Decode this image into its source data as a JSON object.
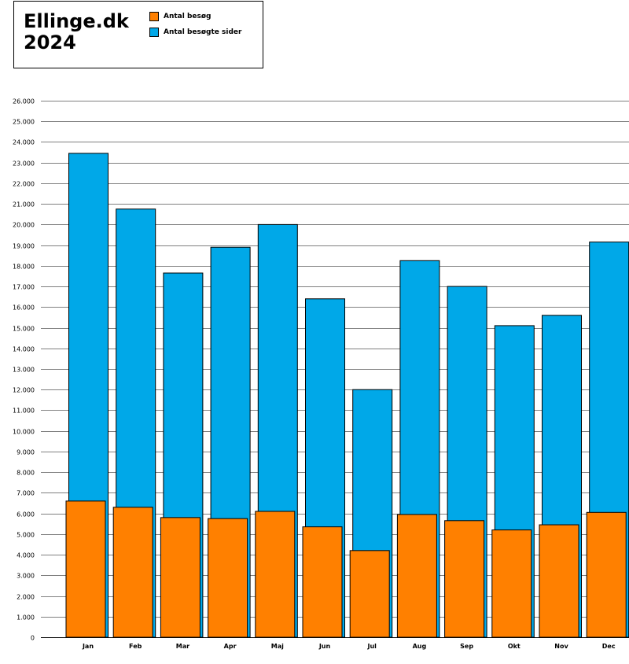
{
  "title_line1": "Ellinge.dk",
  "title_line2": "2024",
  "colors": {
    "visits": "#ff8000",
    "pages": "#00a8e8",
    "grid": "#808080",
    "axis_text": "#000000"
  },
  "legend": [
    {
      "label": "Antal besøg",
      "color_key": "visits"
    },
    {
      "label": "Antal besøgte sider",
      "color_key": "pages"
    }
  ],
  "chart_data": {
    "type": "bar",
    "title": "Ellinge.dk 2024",
    "xlabel": "",
    "ylabel": "",
    "categories": [
      "Jan",
      "Feb",
      "Mar",
      "Apr",
      "Maj",
      "Jun",
      "Jul",
      "Aug",
      "Sep",
      "Okt",
      "Nov",
      "Dec"
    ],
    "series": [
      {
        "name": "Antal besøgte sider",
        "color_key": "pages",
        "values": [
          23450,
          20750,
          17650,
          18900,
          20000,
          16400,
          12000,
          18250,
          17000,
          15100,
          15600,
          19150
        ]
      },
      {
        "name": "Antal besøg",
        "color_key": "visits",
        "values": [
          6600,
          6300,
          5800,
          5750,
          6100,
          5350,
          4200,
          5950,
          5650,
          5200,
          5450,
          6050
        ]
      }
    ],
    "ylim": [
      0,
      26000
    ],
    "yticks": [
      0,
      1000,
      2000,
      3000,
      4000,
      5000,
      6000,
      7000,
      8000,
      9000,
      10000,
      11000,
      12000,
      13000,
      14000,
      15000,
      16000,
      17000,
      18000,
      19000,
      20000,
      21000,
      22000,
      23000,
      24000,
      25000,
      26000
    ],
    "ytick_labels": [
      "0",
      "1.000",
      "2.000",
      "3.000",
      "4.000",
      "5.000",
      "6.000",
      "7.000",
      "8.000",
      "9.000",
      "10.000",
      "11.000",
      "12.000",
      "13.000",
      "14.000",
      "15.000",
      "16.000",
      "17.000",
      "18.000",
      "19.000",
      "20.000",
      "21.000",
      "22.000",
      "23.000",
      "24.000",
      "25.000",
      "26.000"
    ],
    "grid": true,
    "legend_position": "top-left"
  }
}
